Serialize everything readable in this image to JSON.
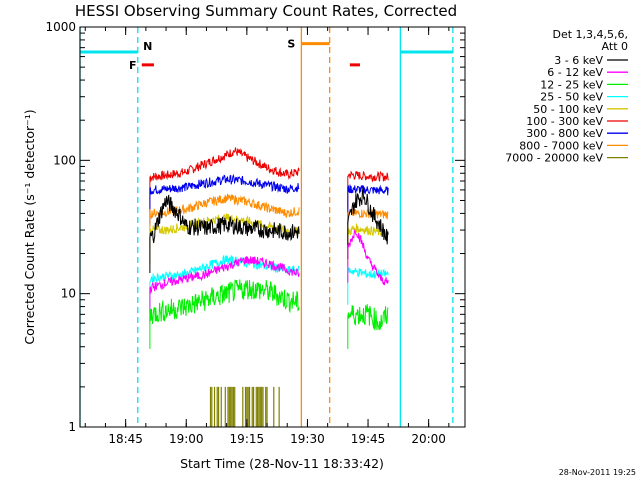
{
  "chart_data": {
    "type": "line",
    "title": "HESSI Observing Summary Count Rates, Corrected",
    "xlabel": "Start Time (28-Nov-11 18:33:42)",
    "ylabel": "Corrected Count Rate (s⁻¹ detector⁻¹)",
    "xlim": [
      "18:33:42",
      "20:09:00"
    ],
    "ylim": [
      1,
      1000
    ],
    "yscale": "log",
    "x_ticks": [
      "18:45",
      "19:00",
      "19:15",
      "19:30",
      "19:45",
      "20:00"
    ],
    "y_ticks": [
      "1",
      "10",
      "100",
      "1000"
    ],
    "timestamp": "28-Nov-2011 19:25",
    "legend": {
      "position": "right",
      "header": [
        "Det 1,3,4,5,6,",
        "Att 0"
      ],
      "entries": [
        {
          "label": "3 - 6 keV",
          "color": "#000000"
        },
        {
          "label": "6 - 12 keV",
          "color": "#ff00ff"
        },
        {
          "label": "12 - 25 keV",
          "color": "#00ee00"
        },
        {
          "label": "25 - 50 keV",
          "color": "#00ffff"
        },
        {
          "label": "50 - 100 keV",
          "color": "#d4c800"
        },
        {
          "label": "100 - 300 keV",
          "color": "#ee0000"
        },
        {
          "label": "300 - 800 keV",
          "color": "#0000ee"
        },
        {
          "label": "800 - 7000 keV",
          "color": "#ff8c00"
        },
        {
          "label": "7000 - 20000 keV",
          "color": "#808000"
        }
      ]
    },
    "series": [
      {
        "color": "#ee0000",
        "segments": [
          {
            "x": [
              "18:51",
              "18:55",
              "19:00",
              "19:05",
              "19:10",
              "19:12",
              "19:15",
              "19:20",
              "19:25",
              "19:28"
            ],
            "y": [
              75,
              77,
              82,
              95,
              110,
              118,
              105,
              88,
              78,
              82
            ]
          },
          {
            "x": [
              "19:40",
              "19:45",
              "19:50"
            ],
            "y": [
              78,
              76,
              75
            ]
          }
        ]
      },
      {
        "color": "#0000ee",
        "segments": [
          {
            "x": [
              "18:51",
              "18:55",
              "19:00",
              "19:05",
              "19:10",
              "19:15",
              "19:20",
              "19:25",
              "19:28"
            ],
            "y": [
              60,
              61,
              63,
              68,
              72,
              70,
              65,
              61,
              63
            ]
          },
          {
            "x": [
              "19:40",
              "19:45",
              "19:50"
            ],
            "y": [
              61,
              60,
              59
            ]
          }
        ]
      },
      {
        "color": "#ff8c00",
        "segments": [
          {
            "x": [
              "18:51",
              "18:55",
              "19:00",
              "19:05",
              "19:10",
              "19:15",
              "19:20",
              "19:25",
              "19:28"
            ],
            "y": [
              40,
              41,
              43,
              48,
              52,
              49,
              44,
              40,
              42
            ]
          },
          {
            "x": [
              "19:40",
              "19:45",
              "19:50"
            ],
            "y": [
              40,
              40,
              39
            ]
          }
        ]
      },
      {
        "color": "#d4c800",
        "segments": [
          {
            "x": [
              "18:51",
              "18:55",
              "19:00",
              "19:05",
              "19:10",
              "19:15",
              "19:20",
              "19:25",
              "19:28"
            ],
            "y": [
              30,
              30,
              32,
              35,
              37,
              35,
              32,
              30,
              30
            ]
          },
          {
            "x": [
              "19:40",
              "19:42",
              "19:45",
              "19:50"
            ],
            "y": [
              29,
              31,
              30,
              28
            ]
          }
        ]
      },
      {
        "color": "#000000",
        "segments": [
          {
            "x": [
              "18:51",
              "18:52",
              "18:55",
              "18:58",
              "19:00",
              "19:05",
              "19:10",
              "19:15",
              "19:20",
              "19:25",
              "19:28"
            ],
            "y": [
              26,
              28,
              50,
              40,
              32,
              31,
              33,
              31,
              30,
              29,
              29
            ]
          },
          {
            "x": [
              "19:40",
              "19:42",
              "19:44",
              "19:46",
              "19:50"
            ],
            "y": [
              33,
              50,
              55,
              40,
              25
            ]
          }
        ]
      },
      {
        "color": "#00ffff",
        "segments": [
          {
            "x": [
              "18:51",
              "18:55",
              "19:00",
              "19:05",
              "19:10",
              "19:15",
              "19:20",
              "19:25",
              "19:28"
            ],
            "y": [
              13,
              13.5,
              14,
              16,
              18,
              17,
              16,
              15,
              15
            ]
          },
          {
            "x": [
              "19:40",
              "19:45",
              "19:50"
            ],
            "y": [
              15,
              14,
              14
            ]
          }
        ]
      },
      {
        "color": "#ff00ff",
        "segments": [
          {
            "x": [
              "18:51",
              "18:55",
              "19:00",
              "19:05",
              "19:10",
              "19:15",
              "19:20",
              "19:25",
              "19:28"
            ],
            "y": [
              11,
              12,
              13,
              14,
              16,
              18,
              17,
              15,
              14
            ]
          },
          {
            "x": [
              "19:40",
              "19:42",
              "19:45",
              "19:48",
              "19:50"
            ],
            "y": [
              22,
              30,
              18,
              13,
              12
            ]
          }
        ]
      },
      {
        "color": "#00ee00",
        "segments": [
          {
            "x": [
              "18:51",
              "18:55",
              "19:00",
              "19:05",
              "19:10",
              "19:15",
              "19:20",
              "19:25",
              "19:28"
            ],
            "y": [
              7,
              7.5,
              8,
              9,
              10,
              11,
              10.5,
              9,
              8.5
            ]
          },
          {
            "x": [
              "19:40",
              "19:45",
              "19:48",
              "19:50"
            ],
            "y": [
              7,
              7,
              6,
              7
            ]
          }
        ]
      },
      {
        "color": "#808000",
        "segments": [
          {
            "x": [
              "19:06",
              "19:09",
              "19:12",
              "19:15",
              "19:18",
              "19:21",
              "19:23"
            ],
            "y": [
              2,
              2,
              2,
              2,
              2,
              2,
              2
            ]
          }
        ]
      }
    ],
    "markers": {
      "cyan_solid": {
        "color": "#00e5ee",
        "x": [
          "18:33:42",
          "19:53:00"
        ]
      },
      "cyan_dashed": {
        "color": "#00e5ee",
        "x": [
          "18:48:00",
          "20:06:00"
        ]
      },
      "orange_solid": {
        "color": "#ff8c00",
        "x": [
          "19:28:30"
        ]
      },
      "orange_dashed": {
        "color": "#ff8c00",
        "x": [
          "19:35:30"
        ]
      },
      "night_bars": {
        "color": "#00e5ee",
        "y": 650,
        "ranges": [
          [
            "18:33:42",
            "18:48:00"
          ],
          [
            "19:53:00",
            "20:06:00"
          ]
        ]
      },
      "saa_bar": {
        "color": "#ff8c00",
        "y": 750,
        "ranges": [
          [
            "19:28:30",
            "19:35:30"
          ]
        ]
      },
      "flare_bars": {
        "color": "#ee0000",
        "y": 520,
        "ranges": [
          [
            "18:49:00",
            "18:52:00"
          ],
          [
            "19:40:30",
            "19:43:00"
          ]
        ]
      }
    },
    "labels": {
      "night": {
        "text": "N",
        "color": "#00e5ee"
      },
      "flare": {
        "text": "F",
        "color": "#ee0000"
      },
      "saa": {
        "text": "S",
        "color": "#ff8c00"
      }
    }
  }
}
